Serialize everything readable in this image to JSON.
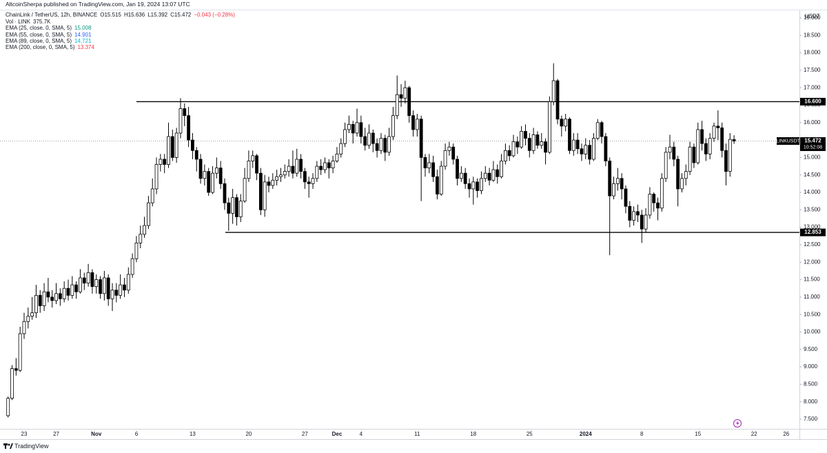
{
  "chart_data": {
    "type": "candlestick",
    "published": "AltcoinSherpa published on TradingView.com, Jan 19, 2024 13:07 UTC",
    "title": "ChainLink / TetherUS, 12h, BINANCE",
    "ohlc_text": [
      "O15.515",
      "H15.636",
      "L15.392",
      "C15.472",
      "−0.043 (−0.28%)"
    ],
    "volume": {
      "label": "Vol · LINK",
      "value": "375.7K"
    },
    "indicators": [
      {
        "name": "EMA (25, close, 0, SMA, 5)",
        "value": 15.008,
        "color": "#089981"
      },
      {
        "name": "EMA (55, close, 0, SMA, 5)",
        "value": 14.901,
        "color": "#2962ff"
      },
      {
        "name": "EMA (89, close, 0, SMA, 5)",
        "value": 14.721,
        "color": "#00bcd4"
      },
      {
        "name": "EMA (200, close, 0, SMA, 5)",
        "value": 13.374,
        "color": "#f23645"
      }
    ],
    "unit": "USDT",
    "symbol": "LINKUSDT",
    "last_price": 15.472,
    "countdown": "10:52:08",
    "levels": [
      {
        "value": 16.6,
        "label": "16.600"
      },
      {
        "value": 12.853,
        "label": "12.853"
      }
    ],
    "up_color": "#ffffff",
    "down_color": "#000000",
    "categories": [
      null,
      null,
      null,
      null,
      "23",
      null,
      null,
      null,
      null,
      null,
      null,
      null,
      "27",
      null,
      null,
      null,
      null,
      null,
      null,
      null,
      null,
      null,
      "Nov",
      null,
      null,
      null,
      null,
      null,
      null,
      null,
      null,
      null,
      "6",
      null,
      null,
      null,
      null,
      null,
      null,
      null,
      null,
      null,
      null,
      null,
      null,
      null,
      "13",
      null,
      null,
      null,
      null,
      null,
      null,
      null,
      null,
      null,
      null,
      null,
      null,
      null,
      "20",
      null,
      null,
      null,
      null,
      null,
      null,
      null,
      null,
      null,
      null,
      null,
      null,
      null,
      "27",
      null,
      null,
      null,
      null,
      null,
      null,
      null,
      "Dec",
      null,
      null,
      null,
      null,
      null,
      "4",
      null,
      null,
      null,
      null,
      null,
      null,
      null,
      null,
      null,
      null,
      null,
      null,
      null,
      "11",
      null,
      null,
      null,
      null,
      null,
      null,
      null,
      null,
      null,
      null,
      null,
      null,
      null,
      "18",
      null,
      null,
      null,
      null,
      null,
      null,
      null,
      null,
      null,
      null,
      null,
      null,
      null,
      "25",
      null,
      null,
      null,
      null,
      null,
      null,
      null,
      null,
      null,
      null,
      null,
      null,
      null,
      "2024",
      null,
      null,
      null,
      null,
      null,
      null,
      null,
      null,
      null,
      null,
      null,
      null,
      null,
      "8",
      null,
      null,
      null,
      null,
      null,
      null,
      null,
      null,
      null,
      null,
      null,
      null,
      null,
      "15",
      null,
      null,
      null,
      null,
      null,
      null,
      null,
      null,
      null,
      null,
      null,
      null,
      null,
      "22",
      null,
      null,
      null,
      null,
      null,
      null,
      null,
      "26",
      null
    ],
    "candles": [
      [
        7.6,
        8.15,
        7.55,
        8.1
      ],
      [
        8.1,
        9.05,
        8.05,
        8.95
      ],
      [
        8.95,
        9.25,
        8.75,
        8.9
      ],
      [
        8.9,
        10.15,
        8.85,
        9.95
      ],
      [
        9.95,
        10.55,
        9.8,
        10.3
      ],
      [
        10.3,
        10.7,
        10.1,
        10.45
      ],
      [
        10.45,
        11.0,
        10.35,
        10.55
      ],
      [
        10.55,
        11.35,
        10.4,
        11.05
      ],
      [
        11.05,
        11.2,
        10.55,
        10.75
      ],
      [
        10.75,
        11.4,
        10.6,
        11.15
      ],
      [
        11.15,
        11.55,
        10.85,
        11.0
      ],
      [
        11.0,
        11.2,
        10.7,
        10.9
      ],
      [
        10.9,
        11.4,
        10.8,
        11.1
      ],
      [
        11.1,
        11.25,
        10.75,
        10.95
      ],
      [
        10.95,
        11.45,
        10.85,
        11.25
      ],
      [
        11.25,
        11.5,
        10.9,
        11.05
      ],
      [
        11.05,
        11.6,
        10.95,
        11.35
      ],
      [
        11.35,
        11.45,
        10.95,
        11.15
      ],
      [
        11.15,
        11.8,
        11.1,
        11.55
      ],
      [
        11.55,
        11.7,
        11.2,
        11.4
      ],
      [
        11.4,
        11.95,
        11.3,
        11.7
      ],
      [
        11.7,
        11.8,
        11.1,
        11.3
      ],
      [
        11.3,
        11.65,
        11.1,
        11.5
      ],
      [
        11.5,
        11.6,
        10.95,
        11.1
      ],
      [
        11.1,
        11.75,
        10.9,
        11.55
      ],
      [
        11.55,
        11.65,
        10.75,
        10.95
      ],
      [
        10.95,
        11.4,
        10.6,
        11.2
      ],
      [
        11.2,
        11.4,
        10.85,
        11.05
      ],
      [
        11.05,
        11.65,
        10.95,
        11.35
      ],
      [
        11.35,
        11.55,
        11.0,
        11.2
      ],
      [
        11.2,
        11.85,
        11.1,
        11.65
      ],
      [
        11.65,
        12.25,
        11.55,
        12.1
      ],
      [
        12.1,
        12.75,
        12.0,
        12.55
      ],
      [
        12.55,
        13.05,
        12.4,
        12.8
      ],
      [
        12.8,
        13.3,
        12.7,
        13.05
      ],
      [
        13.05,
        13.9,
        12.95,
        13.7
      ],
      [
        13.7,
        14.4,
        13.6,
        14.1
      ],
      [
        14.1,
        15.0,
        13.95,
        14.8
      ],
      [
        14.8,
        15.1,
        14.6,
        14.95
      ],
      [
        14.95,
        15.1,
        14.55,
        14.8
      ],
      [
        14.8,
        16.0,
        14.7,
        15.6
      ],
      [
        15.6,
        15.8,
        14.9,
        15.0
      ],
      [
        15.0,
        15.85,
        14.85,
        15.7
      ],
      [
        15.7,
        16.7,
        15.55,
        16.4
      ],
      [
        16.4,
        16.55,
        15.9,
        16.2
      ],
      [
        16.2,
        16.45,
        15.3,
        15.5
      ],
      [
        15.5,
        15.7,
        14.95,
        15.2
      ],
      [
        15.2,
        15.3,
        14.6,
        14.95
      ],
      [
        14.95,
        15.1,
        14.25,
        14.4
      ],
      [
        14.4,
        14.8,
        14.2,
        14.6
      ],
      [
        14.6,
        14.7,
        13.9,
        14.0
      ],
      [
        14.0,
        14.75,
        13.95,
        14.55
      ],
      [
        14.55,
        15.0,
        14.4,
        14.7
      ],
      [
        14.7,
        14.9,
        14.1,
        14.25
      ],
      [
        14.25,
        14.4,
        13.5,
        13.7
      ],
      [
        13.7,
        13.85,
        12.9,
        13.4
      ],
      [
        13.4,
        14.1,
        13.1,
        13.85
      ],
      [
        13.85,
        13.95,
        13.05,
        13.3
      ],
      [
        13.3,
        13.95,
        13.15,
        13.75
      ],
      [
        13.75,
        14.7,
        13.7,
        14.4
      ],
      [
        14.4,
        15.2,
        14.3,
        14.9
      ],
      [
        14.9,
        15.2,
        14.7,
        15.05
      ],
      [
        15.05,
        15.1,
        14.35,
        14.55
      ],
      [
        14.55,
        14.7,
        13.35,
        13.5
      ],
      [
        13.5,
        14.5,
        13.3,
        14.3
      ],
      [
        14.3,
        14.45,
        14.0,
        14.2
      ],
      [
        14.2,
        14.55,
        14.1,
        14.35
      ],
      [
        14.35,
        14.65,
        14.2,
        14.45
      ],
      [
        14.45,
        14.7,
        14.3,
        14.5
      ],
      [
        14.5,
        14.8,
        14.4,
        14.6
      ],
      [
        14.6,
        14.95,
        14.45,
        14.75
      ],
      [
        14.75,
        15.2,
        14.4,
        14.55
      ],
      [
        14.55,
        15.25,
        14.45,
        14.95
      ],
      [
        14.95,
        15.1,
        14.4,
        14.6
      ],
      [
        14.6,
        14.7,
        14.1,
        14.3
      ],
      [
        14.3,
        14.45,
        13.85,
        14.25
      ],
      [
        14.25,
        14.55,
        14.1,
        14.4
      ],
      [
        14.4,
        14.9,
        14.3,
        14.75
      ],
      [
        14.75,
        14.95,
        14.5,
        14.65
      ],
      [
        14.65,
        15.0,
        14.55,
        14.85
      ],
      [
        14.85,
        14.95,
        14.4,
        14.7
      ],
      [
        14.7,
        15.05,
        14.55,
        14.9
      ],
      [
        14.9,
        15.3,
        14.85,
        15.1
      ],
      [
        15.1,
        15.55,
        15.0,
        15.4
      ],
      [
        15.4,
        16.0,
        15.3,
        15.8
      ],
      [
        15.8,
        16.2,
        15.7,
        15.95
      ],
      [
        15.95,
        16.05,
        15.4,
        15.7
      ],
      [
        15.7,
        16.4,
        15.6,
        16.0
      ],
      [
        16.0,
        16.2,
        15.4,
        15.6
      ],
      [
        15.6,
        15.85,
        15.2,
        15.35
      ],
      [
        15.35,
        15.95,
        15.25,
        15.7
      ],
      [
        15.7,
        15.8,
        15.15,
        15.4
      ],
      [
        15.4,
        15.55,
        15.0,
        15.2
      ],
      [
        15.2,
        15.7,
        15.1,
        15.55
      ],
      [
        15.55,
        15.65,
        14.9,
        15.15
      ],
      [
        15.15,
        15.85,
        15.05,
        15.6
      ],
      [
        15.6,
        16.45,
        15.5,
        16.2
      ],
      [
        16.2,
        17.35,
        16.1,
        16.8
      ],
      [
        16.8,
        17.1,
        16.45,
        16.7
      ],
      [
        16.7,
        17.2,
        16.55,
        17.0
      ],
      [
        17.0,
        17.05,
        16.0,
        16.2
      ],
      [
        16.2,
        16.35,
        15.6,
        15.8
      ],
      [
        15.8,
        16.25,
        15.6,
        16.1
      ],
      [
        16.1,
        16.2,
        13.75,
        15.0
      ],
      [
        15.0,
        15.1,
        14.45,
        14.7
      ],
      [
        14.7,
        15.1,
        14.55,
        14.85
      ],
      [
        14.85,
        15.05,
        14.3,
        14.45
      ],
      [
        14.45,
        14.65,
        13.8,
        13.95
      ],
      [
        13.95,
        14.9,
        13.9,
        14.75
      ],
      [
        14.75,
        15.4,
        14.65,
        15.2
      ],
      [
        15.2,
        15.45,
        15.05,
        15.3
      ],
      [
        15.3,
        15.4,
        14.8,
        14.95
      ],
      [
        14.95,
        15.05,
        14.2,
        14.4
      ],
      [
        14.4,
        14.75,
        14.3,
        14.55
      ],
      [
        14.55,
        14.7,
        14.1,
        14.25
      ],
      [
        14.25,
        14.4,
        13.85,
        14.1
      ],
      [
        14.1,
        14.45,
        13.65,
        14.3
      ],
      [
        14.3,
        14.4,
        13.85,
        14.05
      ],
      [
        14.05,
        14.6,
        13.95,
        14.4
      ],
      [
        14.4,
        14.75,
        14.3,
        14.55
      ],
      [
        14.55,
        14.7,
        14.2,
        14.35
      ],
      [
        14.35,
        14.9,
        14.3,
        14.65
      ],
      [
        14.65,
        14.8,
        14.25,
        14.45
      ],
      [
        14.45,
        15.1,
        14.4,
        14.9
      ],
      [
        14.9,
        15.4,
        14.8,
        15.2
      ],
      [
        15.2,
        15.35,
        14.9,
        15.05
      ],
      [
        15.05,
        15.65,
        15.0,
        15.45
      ],
      [
        15.45,
        15.6,
        15.1,
        15.3
      ],
      [
        15.3,
        15.9,
        15.25,
        15.75
      ],
      [
        15.75,
        15.95,
        15.35,
        15.55
      ],
      [
        15.55,
        15.7,
        15.0,
        15.2
      ],
      [
        15.2,
        15.85,
        15.1,
        15.65
      ],
      [
        15.65,
        15.75,
        15.25,
        15.35
      ],
      [
        15.35,
        15.7,
        15.25,
        15.45
      ],
      [
        15.45,
        15.55,
        14.8,
        15.15
      ],
      [
        15.15,
        16.75,
        15.1,
        16.6
      ],
      [
        16.6,
        17.7,
        16.5,
        17.2
      ],
      [
        17.2,
        17.25,
        15.95,
        16.1
      ],
      [
        16.1,
        16.2,
        15.6,
        15.9
      ],
      [
        15.9,
        16.25,
        15.75,
        16.1
      ],
      [
        16.1,
        16.15,
        15.1,
        15.2
      ],
      [
        15.2,
        15.7,
        15.05,
        15.5
      ],
      [
        15.5,
        15.7,
        15.1,
        15.25
      ],
      [
        15.25,
        15.4,
        14.9,
        15.1
      ],
      [
        15.1,
        15.55,
        14.95,
        15.35
      ],
      [
        15.35,
        15.5,
        14.8,
        14.95
      ],
      [
        14.95,
        15.7,
        14.9,
        15.55
      ],
      [
        15.55,
        16.1,
        15.5,
        16.0
      ],
      [
        16.0,
        16.05,
        15.4,
        15.6
      ],
      [
        15.6,
        15.7,
        14.75,
        14.9
      ],
      [
        14.9,
        15.0,
        12.2,
        13.9
      ],
      [
        13.9,
        14.45,
        13.8,
        14.25
      ],
      [
        14.25,
        14.7,
        14.05,
        14.4
      ],
      [
        14.4,
        14.55,
        13.8,
        14.1
      ],
      [
        14.1,
        14.2,
        13.4,
        13.6
      ],
      [
        13.6,
        13.75,
        13.0,
        13.2
      ],
      [
        13.2,
        13.6,
        13.05,
        13.45
      ],
      [
        13.45,
        13.65,
        13.15,
        13.35
      ],
      [
        13.35,
        13.5,
        12.55,
        12.95
      ],
      [
        12.95,
        13.55,
        12.85,
        13.35
      ],
      [
        13.35,
        14.15,
        13.25,
        13.95
      ],
      [
        13.95,
        14.0,
        13.45,
        13.7
      ],
      [
        13.7,
        13.85,
        13.2,
        13.55
      ],
      [
        13.55,
        14.55,
        13.45,
        14.4
      ],
      [
        14.4,
        15.3,
        14.3,
        15.15
      ],
      [
        15.15,
        15.65,
        14.95,
        15.3
      ],
      [
        15.3,
        15.45,
        14.75,
        14.95
      ],
      [
        14.95,
        15.05,
        13.6,
        14.1
      ],
      [
        14.1,
        14.55,
        14.0,
        14.4
      ],
      [
        14.4,
        14.8,
        14.2,
        14.6
      ],
      [
        14.6,
        15.45,
        14.5,
        15.3
      ],
      [
        15.3,
        15.4,
        14.7,
        14.85
      ],
      [
        14.85,
        16.0,
        14.8,
        15.8
      ],
      [
        15.8,
        16.05,
        15.2,
        15.4
      ],
      [
        15.4,
        15.55,
        14.9,
        15.1
      ],
      [
        15.1,
        15.7,
        14.95,
        15.55
      ],
      [
        15.55,
        16.0,
        15.45,
        15.9
      ],
      [
        15.9,
        16.35,
        15.5,
        15.85
      ],
      [
        15.85,
        16.0,
        15.0,
        15.2
      ],
      [
        15.2,
        15.4,
        14.2,
        14.6
      ],
      [
        14.6,
        15.7,
        14.45,
        15.52
      ],
      [
        15.515,
        15.636,
        15.392,
        15.472
      ],
      null,
      null,
      null,
      null,
      null,
      null,
      null,
      null,
      null,
      null,
      null,
      null,
      null,
      null
    ],
    "ylim": [
      7.223,
      19.217
    ],
    "yticks": [
      {
        "value": 7.5,
        "label": "7.500"
      },
      {
        "value": 8,
        "label": "8.000"
      },
      {
        "value": 8.5,
        "label": "8.500"
      },
      {
        "value": 9,
        "label": "9.000"
      },
      {
        "value": 9.5,
        "label": "9.500"
      },
      {
        "value": 10,
        "label": "10.000"
      },
      {
        "value": 10.5,
        "label": "10.500"
      },
      {
        "value": 11,
        "label": "11.000"
      },
      {
        "value": 11.5,
        "label": "11.500"
      },
      {
        "value": 12,
        "label": "12.000"
      },
      {
        "value": 12.5,
        "label": "12.500"
      },
      {
        "value": 13,
        "label": "13.000"
      },
      {
        "value": 13.5,
        "label": "13.500"
      },
      {
        "value": 14,
        "label": "14.000"
      },
      {
        "value": 14.5,
        "label": "14.500"
      },
      {
        "value": 15,
        "label": "15.000"
      },
      {
        "value": 15.5,
        "label": "15.500"
      },
      {
        "value": 16,
        "label": "16.000"
      },
      {
        "value": 16.5,
        "label": "16.500"
      },
      {
        "value": 17,
        "label": "17.000"
      },
      {
        "value": 17.5,
        "label": "17.500"
      },
      {
        "value": 18,
        "label": "18.000"
      },
      {
        "value": 18.5,
        "label": "18.500"
      },
      {
        "value": 19,
        "label": "19.000"
      }
    ],
    "grid": false
  },
  "footer": "TradingView"
}
